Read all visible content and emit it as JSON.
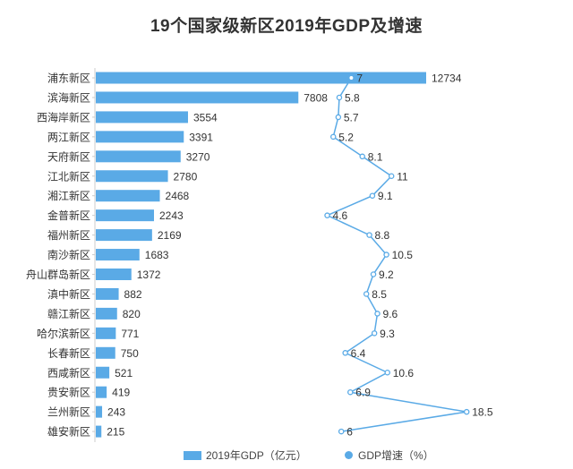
{
  "chart_data": {
    "type": "bar",
    "title": "19个国家级新区2019年GDP及增速",
    "orientation": "horizontal",
    "categories": [
      "浦东新区",
      "滨海新区",
      "西海岸新区",
      "两江新区",
      "天府新区",
      "江北新区",
      "湘江新区",
      "金普新区",
      "福州新区",
      "南沙新区",
      "舟山群岛新区",
      "滇中新区",
      "赣江新区",
      "哈尔滨新区",
      "长春新区",
      "西咸新区",
      "贵安新区",
      "兰州新区",
      "雄安新区"
    ],
    "series": [
      {
        "name": "2019年GDP（亿元）",
        "type": "bar",
        "values": [
          12734,
          7808,
          3554,
          3391,
          3270,
          2780,
          2468,
          2243,
          2169,
          1683,
          1372,
          882,
          820,
          771,
          750,
          521,
          419,
          243,
          215
        ]
      },
      {
        "name": "GDP增速（%）",
        "type": "line",
        "values": [
          7,
          5.8,
          5.7,
          5.2,
          8.1,
          11,
          9.1,
          4.6,
          8.8,
          10.5,
          9.2,
          8.5,
          9.6,
          9.3,
          6.4,
          10.6,
          6.9,
          18.5,
          6
        ]
      }
    ],
    "legend_position": "bottom",
    "grid": false,
    "colors": {
      "bar": "#5aaae6",
      "line": "#5aaae6",
      "text": "#333333"
    }
  }
}
